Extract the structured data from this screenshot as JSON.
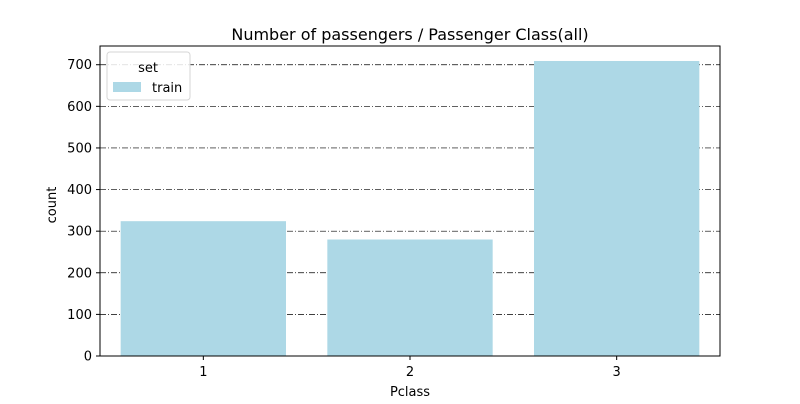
{
  "chart_data": {
    "type": "bar",
    "title": "Number of passengers / Passenger Class(all)",
    "xlabel": "Pclass",
    "ylabel": "count",
    "categories": [
      "1",
      "2",
      "3"
    ],
    "series": [
      {
        "name": "train",
        "values": [
          324,
          280,
          709
        ],
        "color": "#add8e6"
      }
    ],
    "ylim": [
      0,
      745
    ],
    "yticks": [
      0,
      100,
      200,
      300,
      400,
      500,
      600,
      700
    ],
    "grid": {
      "y": true,
      "style": "dashdot",
      "color": "#000000"
    },
    "legend": {
      "title": "set",
      "placement": "top-left"
    }
  }
}
